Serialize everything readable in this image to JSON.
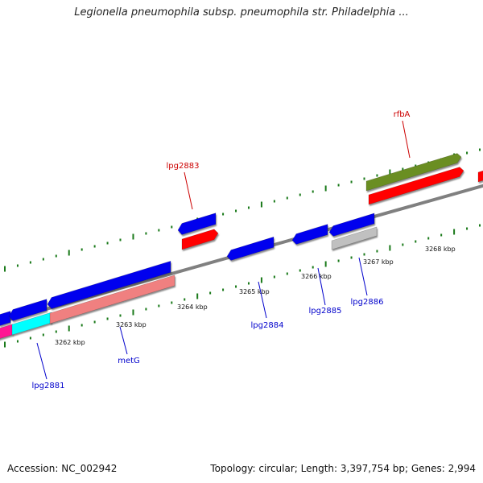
{
  "title": "Legionella pneumophila subsp. pneumophila str. Philadelphia ...",
  "footer": {
    "accession": "Accession: NC_002942",
    "summary": "Topology: circular; Length: 3,397,754 bp; Genes: 2,994"
  },
  "colors": {
    "backbone": "#808080",
    "tick": "#1a7a1a",
    "label_blue": "#0000cc",
    "label_red": "#cc0000",
    "gene_blue": "#0000ee",
    "gene_red": "#ff0000",
    "gene_pink": "#f08080",
    "gene_cyan": "#00ffff",
    "gene_magenta": "#ff1493",
    "gene_olive": "#6b8e23",
    "gene_grey": "#c0c0c0"
  },
  "scale_labels": [
    "3262 kbp",
    "3263 kbp",
    "3264 kbp",
    "3265 kbp",
    "3266 kbp",
    "3267 kbp",
    "3268 kbp"
  ],
  "gene_labels": [
    {
      "name": "lpg2881",
      "color": "#0000cc"
    },
    {
      "name": "metG",
      "color": "#0000cc"
    },
    {
      "name": "lpg2883",
      "color": "#cc0000"
    },
    {
      "name": "lpg2884",
      "color": "#0000cc"
    },
    {
      "name": "lpg2885",
      "color": "#0000cc"
    },
    {
      "name": "lpg2886",
      "color": "#0000cc"
    },
    {
      "name": "rfbA",
      "color": "#cc0000"
    }
  ]
}
